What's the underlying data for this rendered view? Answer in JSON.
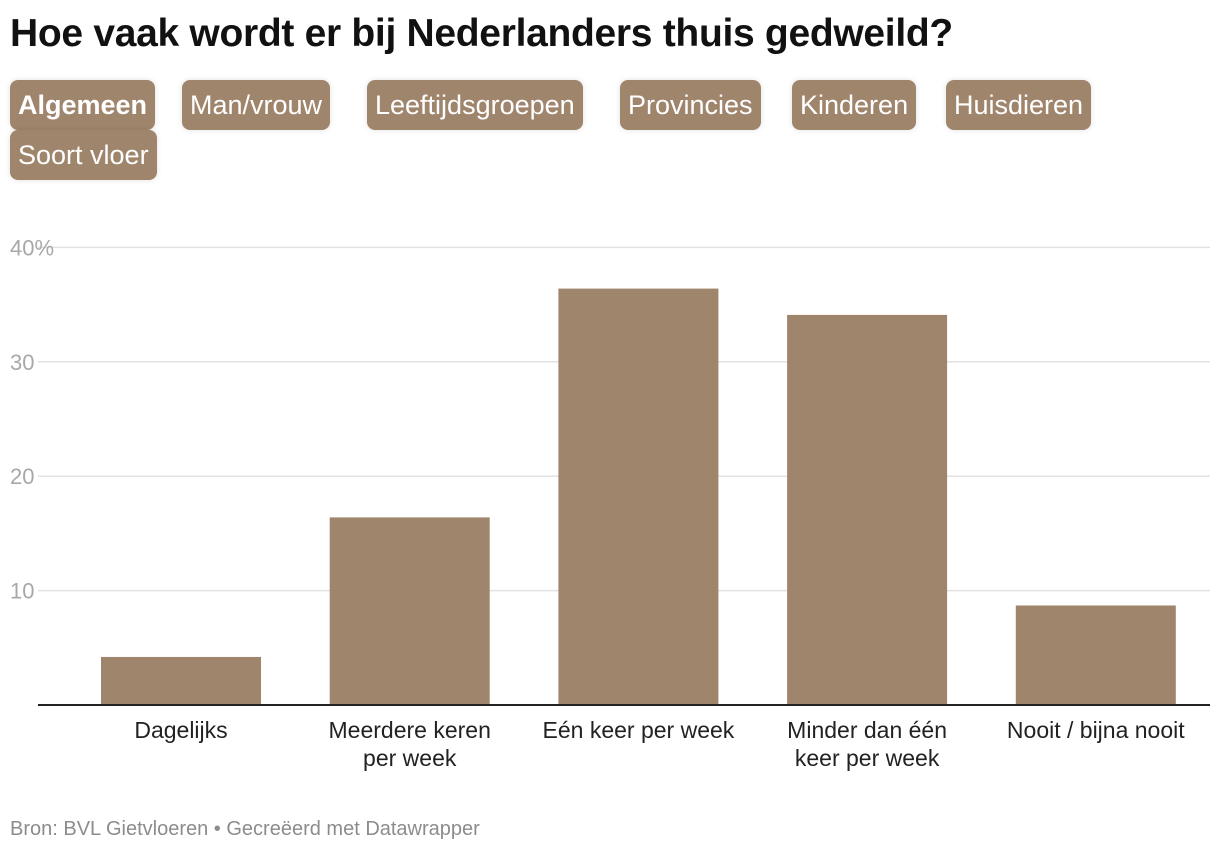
{
  "header": {
    "title": "Hoe vaak wordt er bij Nederlanders thuis gedweild?"
  },
  "tabs": [
    {
      "label": "Algemeen",
      "active": true
    },
    {
      "label": "Man/vrouw",
      "active": false
    },
    {
      "label": "Leeftijdsgroepen",
      "active": false
    },
    {
      "label": "Provincies",
      "active": false
    },
    {
      "label": "Kinderen",
      "active": false
    },
    {
      "label": "Huisdieren",
      "active": false
    },
    {
      "label": "Soort vloer",
      "active": false
    }
  ],
  "colors": {
    "bar": "#a0856d",
    "tab": "#a0856d",
    "grid": "#e2e2e2"
  },
  "chart_data": {
    "type": "bar",
    "categories": [
      [
        "Dagelijks"
      ],
      [
        "Meerdere keren",
        "per week"
      ],
      [
        "Eén keer per week"
      ],
      [
        "Minder dan één",
        "keer per week"
      ],
      [
        "Nooit / bijna nooit"
      ]
    ],
    "values": [
      4.2,
      16.4,
      36.4,
      34.1,
      8.7
    ],
    "ylim": [
      0,
      40
    ],
    "yticks": [
      {
        "value": 10,
        "label": "10"
      },
      {
        "value": 20,
        "label": "20"
      },
      {
        "value": 30,
        "label": "30"
      },
      {
        "value": 40,
        "label": "40%"
      }
    ],
    "grid": true
  },
  "footer": {
    "source": "Bron: BVL Gietvloeren • Gecreëerd met Datawrapper"
  }
}
